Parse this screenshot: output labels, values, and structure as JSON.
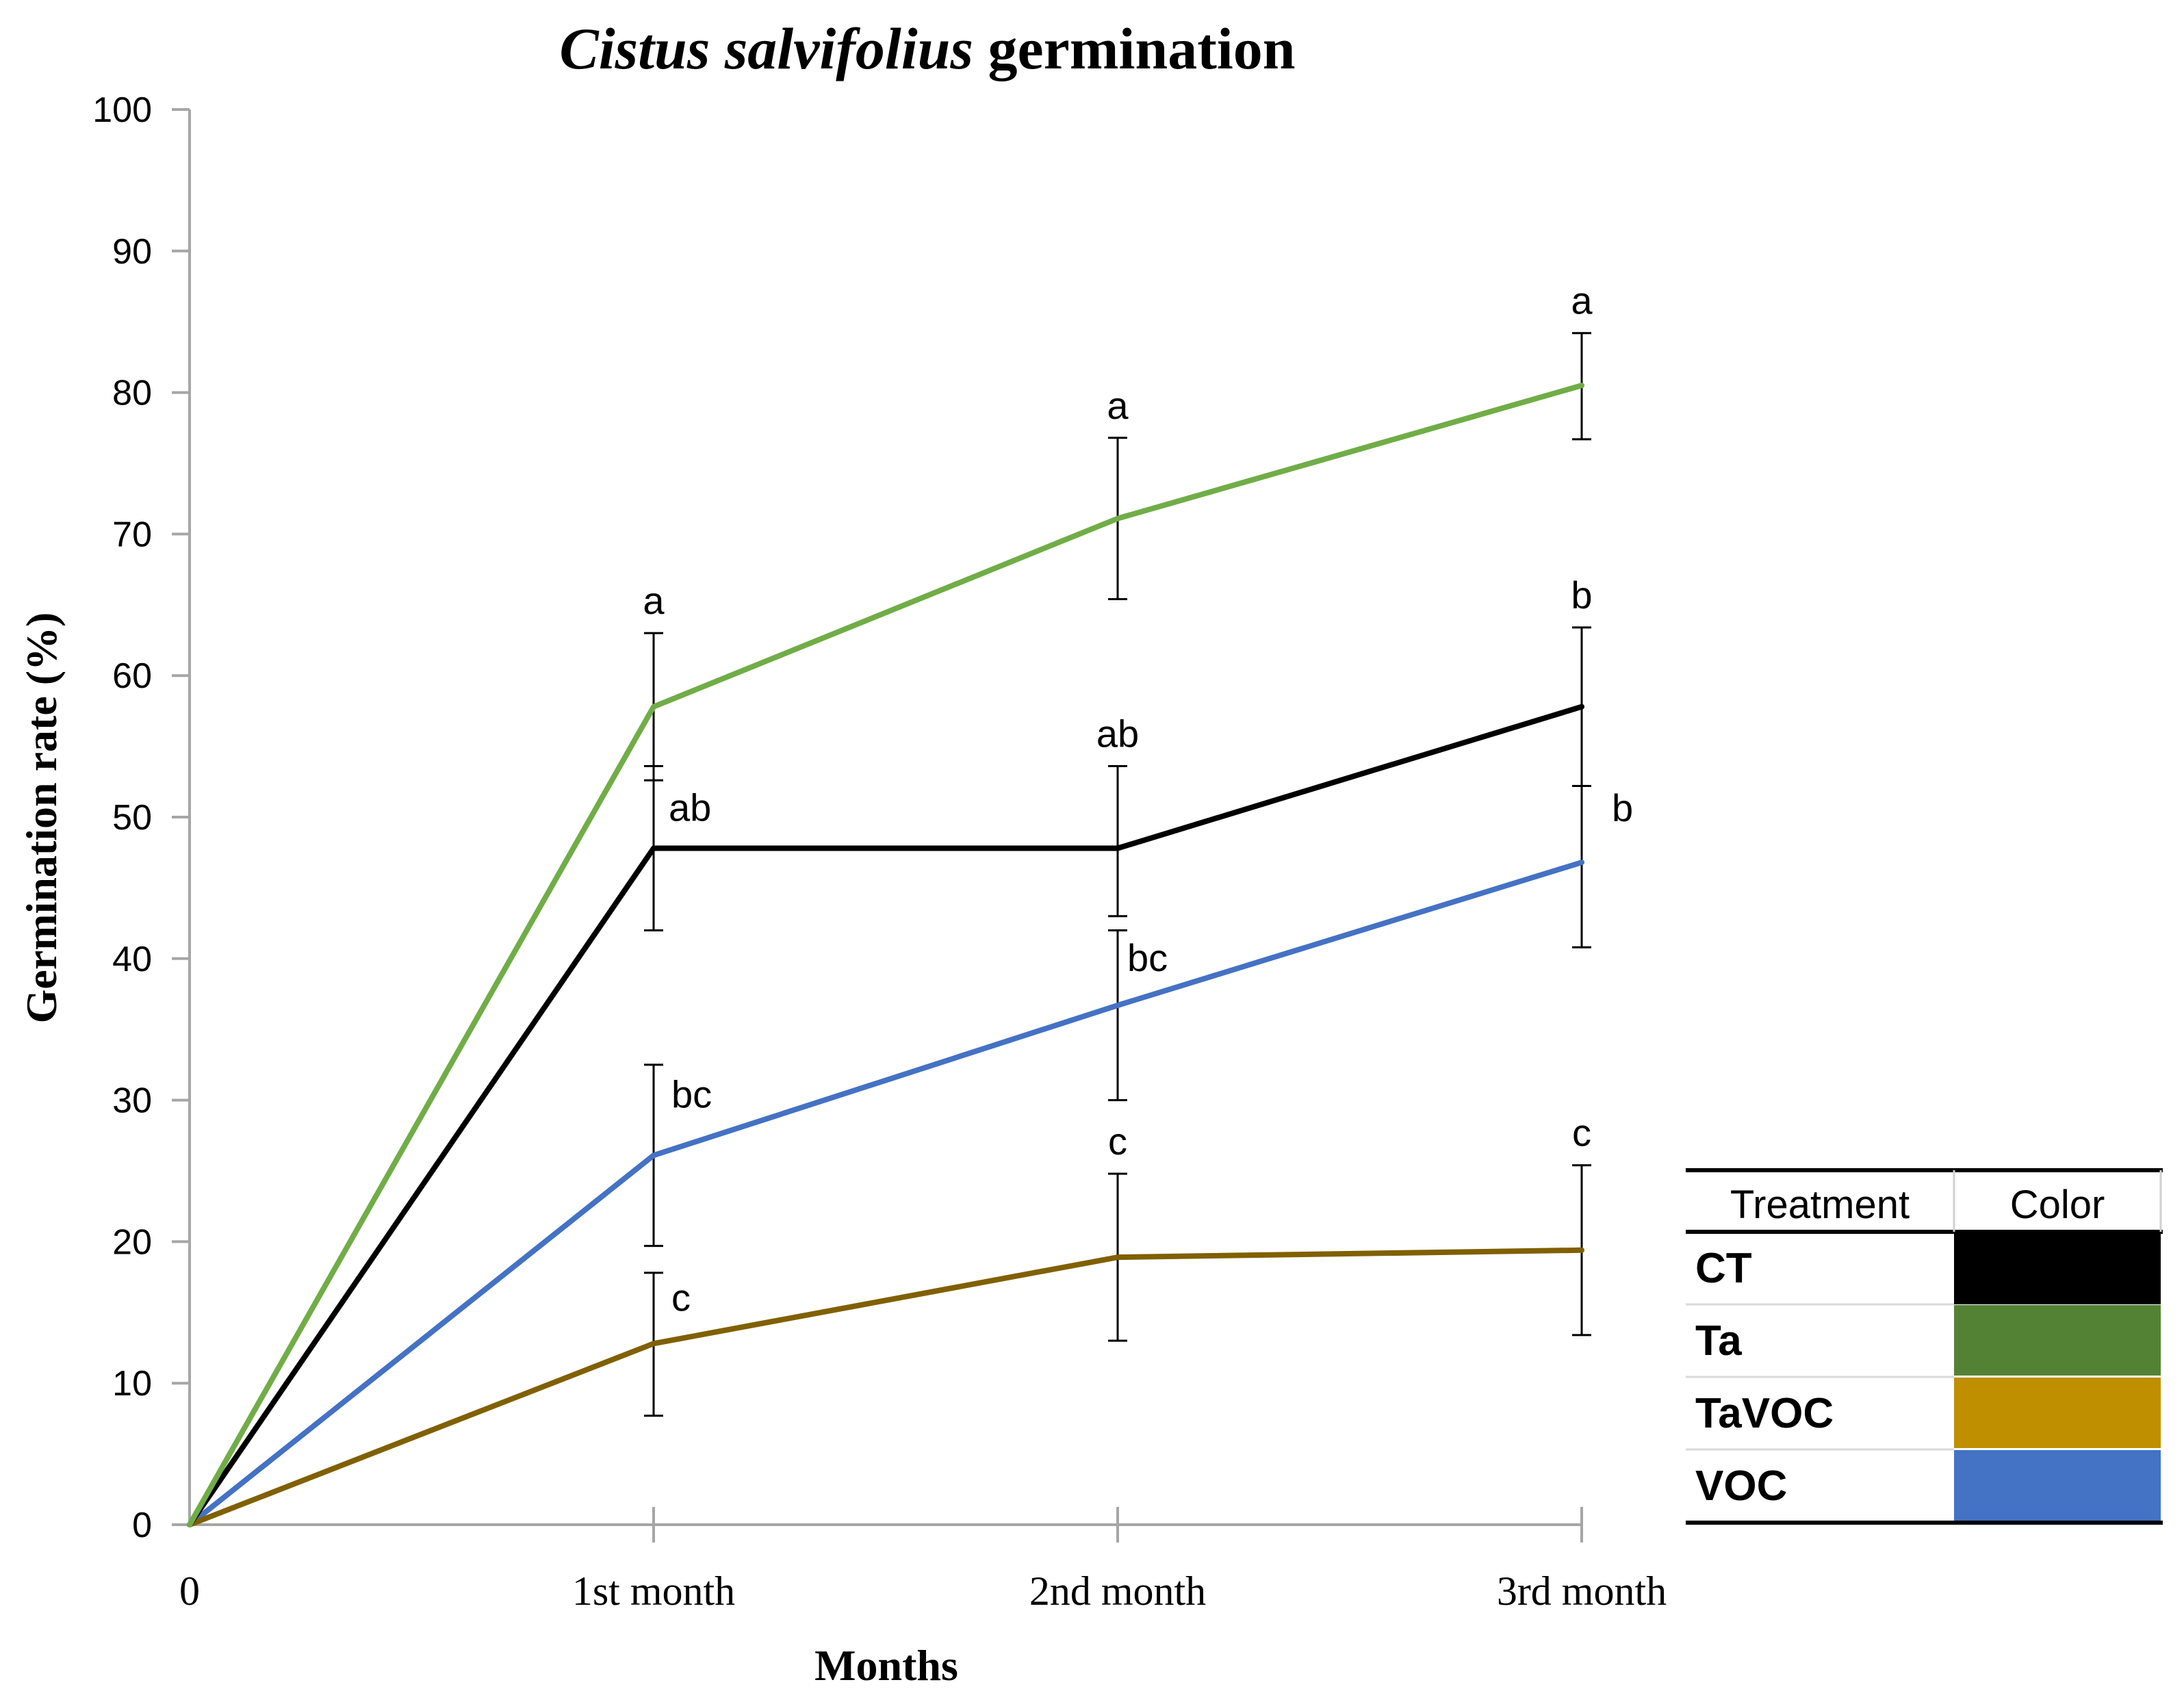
{
  "chart_data": {
    "type": "line",
    "title_italic": "Cistus salvifolius",
    "title_rest": " germination",
    "xlabel": "Months",
    "ylabel": "Germination rate (%)",
    "categories": [
      "0",
      "1st month",
      "2nd month",
      "3rd month"
    ],
    "ylim": [
      0,
      100
    ],
    "yticks": [
      0,
      10,
      20,
      30,
      40,
      50,
      60,
      70,
      80,
      90,
      100
    ],
    "grid": false,
    "series": [
      {
        "name": "CT",
        "color": "#000000",
        "values": [
          0,
          47.8,
          47.8,
          57.8
        ],
        "err_low": [
          null,
          42.0,
          43.0,
          52.2
        ],
        "err_high": [
          null,
          53.6,
          53.6,
          63.4
        ],
        "labels": [
          "",
          "ab",
          "ab",
          "b"
        ]
      },
      {
        "name": "Ta",
        "color": "#70AD47",
        "values": [
          0,
          57.8,
          71.1,
          80.5
        ],
        "err_low": [
          null,
          52.6,
          65.4,
          76.7
        ],
        "err_high": [
          null,
          63.0,
          76.8,
          84.2
        ],
        "labels": [
          "",
          "a",
          "a",
          "a"
        ]
      },
      {
        "name": "TaVOC",
        "color": "#806000",
        "values": [
          0,
          12.8,
          18.9,
          19.4
        ],
        "err_low": [
          null,
          7.7,
          13.0,
          13.4
        ],
        "err_high": [
          null,
          17.8,
          24.8,
          25.4
        ],
        "labels": [
          "",
          "c",
          "c",
          "c"
        ]
      },
      {
        "name": "VOC",
        "color": "#4472C4",
        "values": [
          0,
          26.1,
          36.7,
          46.8
        ],
        "err_low": [
          null,
          19.7,
          30.0,
          40.8
        ],
        "err_high": [
          null,
          32.5,
          42.0,
          52.2
        ],
        "labels": [
          "",
          "bc",
          "bc",
          "b"
        ]
      }
    ],
    "legend_table": {
      "header_treatment": "Treatment",
      "header_color": "Color",
      "rows": [
        {
          "name": "CT",
          "color": "#000000"
        },
        {
          "name": "Ta",
          "color": "#548235"
        },
        {
          "name": "TaVOC",
          "color": "#BF8F00"
        },
        {
          "name": "VOC",
          "color": "#4472C4"
        }
      ]
    }
  }
}
